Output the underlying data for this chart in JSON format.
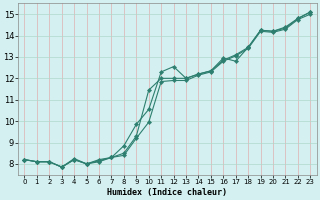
{
  "xlabel": "Humidex (Indice chaleur)",
  "bg_color": "#d4f0f0",
  "grid_color": "#b0d8cc",
  "line_color": "#2d7f6f",
  "xlim": [
    -0.5,
    23.5
  ],
  "ylim": [
    7.5,
    15.5
  ],
  "xticks": [
    0,
    1,
    2,
    3,
    4,
    5,
    6,
    7,
    8,
    9,
    10,
    11,
    12,
    13,
    14,
    15,
    16,
    17,
    18,
    19,
    20,
    21,
    22,
    23
  ],
  "yticks": [
    8,
    9,
    10,
    11,
    12,
    13,
    14,
    15
  ],
  "line1_x": [
    0,
    1,
    2,
    3,
    4,
    5,
    6,
    7,
    8,
    9,
    10,
    11,
    12,
    13,
    14,
    15,
    16,
    17,
    18,
    19,
    20,
    21,
    22,
    23
  ],
  "line1_y": [
    8.2,
    8.1,
    8.1,
    7.85,
    8.25,
    8.0,
    8.15,
    8.3,
    8.85,
    9.85,
    10.55,
    12.3,
    12.55,
    12.0,
    12.2,
    12.35,
    12.95,
    12.8,
    13.45,
    14.25,
    14.2,
    14.4,
    14.8,
    15.1
  ],
  "line2_x": [
    0,
    1,
    2,
    3,
    4,
    5,
    6,
    7,
    8,
    9,
    10,
    11,
    12,
    13,
    14,
    15,
    16,
    17,
    18,
    19,
    20,
    21,
    22,
    23
  ],
  "line2_y": [
    8.2,
    8.1,
    8.1,
    7.85,
    8.2,
    8.0,
    8.2,
    8.3,
    8.5,
    9.3,
    11.45,
    12.0,
    12.0,
    12.0,
    12.2,
    12.35,
    12.85,
    13.1,
    13.45,
    14.25,
    14.2,
    14.35,
    14.8,
    15.1
  ],
  "line3_x": [
    0,
    1,
    2,
    3,
    4,
    5,
    6,
    7,
    8,
    9,
    10,
    11,
    12,
    13,
    14,
    15,
    16,
    17,
    18,
    19,
    20,
    21,
    22,
    23
  ],
  "line3_y": [
    8.2,
    8.1,
    8.1,
    7.85,
    8.2,
    8.0,
    8.1,
    8.3,
    8.4,
    9.2,
    9.95,
    11.85,
    11.9,
    11.9,
    12.15,
    12.3,
    12.8,
    13.05,
    13.4,
    14.2,
    14.15,
    14.3,
    14.75,
    15.0
  ]
}
